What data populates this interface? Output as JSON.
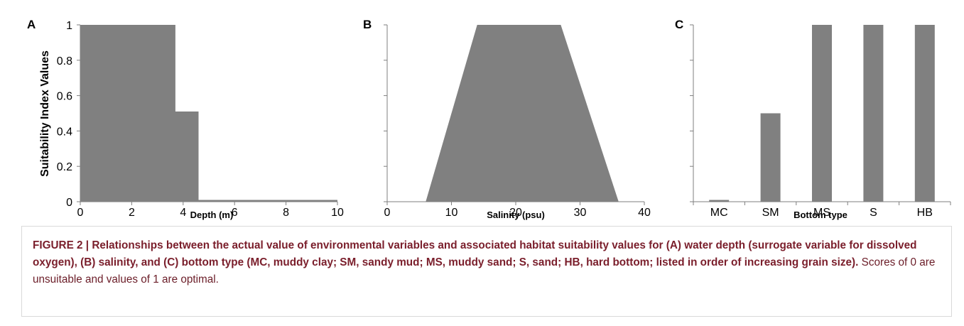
{
  "ylabel": "Suitability Index Values",
  "chart_data": [
    {
      "panel": "A",
      "type": "area",
      "xlabel": "Depth (m)",
      "xlim": [
        0,
        10
      ],
      "ylim": [
        0,
        1
      ],
      "xticks": [
        "0",
        "2",
        "4",
        "6",
        "8",
        "10"
      ],
      "yticks": [
        "0",
        "0.2",
        "0.4",
        "0.6",
        "0.8",
        "1"
      ],
      "color": "#808080",
      "x": [
        0,
        0,
        3.7,
        3.7,
        4.6,
        4.6,
        10,
        10
      ],
      "y": [
        0,
        1,
        1,
        0.51,
        0.51,
        0.01,
        0.01,
        0
      ]
    },
    {
      "panel": "B",
      "type": "area",
      "xlabel": "Salinity (psu)",
      "xlim": [
        0,
        40
      ],
      "ylim": [
        0,
        1
      ],
      "xticks": [
        "0",
        "10",
        "20",
        "30",
        "40"
      ],
      "color": "#808080",
      "x": [
        6,
        14,
        27,
        36
      ],
      "y": [
        0,
        1,
        1,
        0
      ]
    },
    {
      "panel": "C",
      "type": "bar",
      "xlabel": "Bottom type",
      "ylim": [
        0,
        1
      ],
      "color": "#808080",
      "categories": [
        "MC",
        "SM",
        "MS",
        "S",
        "HB"
      ],
      "values": [
        0.01,
        0.5,
        1,
        1,
        1
      ]
    }
  ],
  "caption": {
    "bold": "FIGURE 2 | Relationships between the actual value of environmental variables and associated habitat suitability values for (A) water depth (surrogate variable for dissolved oxygen), (B) salinity, and (C) bottom type (MC, muddy clay; SM, sandy mud; MS, muddy sand; S, sand; HB, hard bottom; listed in order of increasing grain size).",
    "rest": " Scores of 0 are unsuitable and values of 1 are optimal."
  }
}
